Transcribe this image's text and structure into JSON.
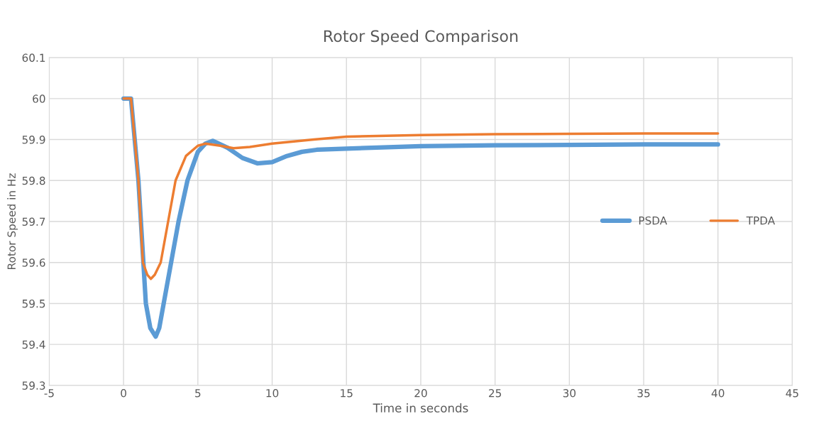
{
  "chart_data": {
    "type": "line",
    "title": "Rotor Speed Comparison",
    "xlabel": "Time in seconds",
    "ylabel": "Rotor Speed in Hz",
    "xlim": [
      -5,
      45
    ],
    "xticks": [
      -5,
      0,
      5,
      10,
      15,
      20,
      25,
      30,
      35,
      40,
      45
    ],
    "ylim": [
      59.3,
      60.1
    ],
    "yticks": [
      59.3,
      59.4,
      59.5,
      59.6,
      59.7,
      59.8,
      59.9,
      {
        "value": 60,
        "label": "60"
      },
      60.1
    ],
    "grid": true,
    "legend": "right",
    "marker": "none",
    "line_style": "solid",
    "series": [
      {
        "name": "PSDA",
        "color": "#5b9bd5",
        "x": [
          0,
          0.5,
          1.0,
          1.5,
          1.8,
          2.16,
          2.4,
          2.7,
          3.2,
          3.7,
          4.3,
          5.0,
          5.5,
          6.0,
          7.0,
          8.0,
          9.0,
          10,
          11,
          12,
          13,
          15,
          20,
          25,
          30,
          35,
          40
        ],
        "values": [
          60,
          60,
          59.8,
          59.5,
          59.44,
          59.419,
          59.44,
          59.5,
          59.6,
          59.7,
          59.8,
          59.87,
          59.89,
          59.897,
          59.88,
          59.855,
          59.842,
          59.845,
          59.86,
          59.87,
          59.875,
          59.878,
          59.884,
          59.886,
          59.887,
          59.888,
          59.888
        ]
      },
      {
        "name": "TPDA",
        "color": "#ed7d31",
        "x": [
          0,
          0.5,
          1.0,
          1.3,
          1.6,
          1.84,
          2.1,
          2.5,
          3.0,
          3.5,
          4.2,
          5.0,
          5.5,
          6.5,
          7.4,
          8.5,
          10,
          12.8,
          15,
          20,
          25,
          30,
          35,
          40
        ],
        "values": [
          60,
          60,
          59.8,
          59.6,
          59.57,
          59.56,
          59.57,
          59.6,
          59.7,
          59.8,
          59.86,
          59.885,
          59.89,
          59.885,
          59.879,
          59.882,
          59.89,
          59.9,
          59.907,
          59.911,
          59.913,
          59.914,
          59.915,
          59.915
        ]
      }
    ]
  }
}
